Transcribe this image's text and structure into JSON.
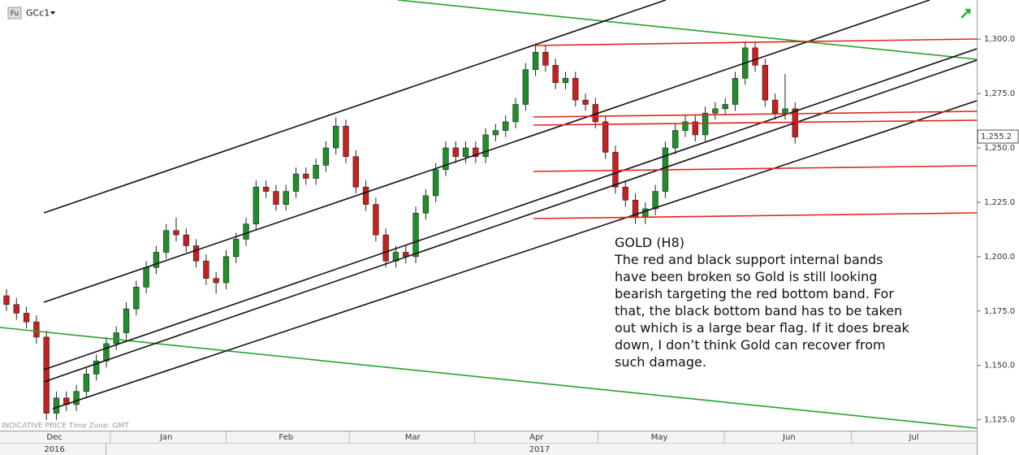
{
  "chart_data": {
    "type": "candlestick",
    "symbol_prefix": "Fu",
    "symbol": "GCc1",
    "footer": "INDICATIVE PRICE   Time Zone: GMT",
    "annotation": {
      "title": "GOLD (H8)",
      "lines": [
        "The red and black support internal bands",
        "have been broken so Gold is still looking",
        "bearish targeting the red bottom band. For",
        "that, the black bottom band has to be taken",
        "out which is a large bear flag. If it does break",
        "down, I don’t think Gold can recover from",
        "such damage."
      ]
    },
    "up_color": "#1f8f2a",
    "down_color": "#c62020",
    "xlim": [
      -0.65,
      97.2
    ],
    "ylim": [
      1120,
      1318
    ],
    "yticks": [
      {
        "value": 1125,
        "label": "1,125.0"
      },
      {
        "value": 1150,
        "label": "1,150.0"
      },
      {
        "value": 1175,
        "label": "1,175.0"
      },
      {
        "value": 1200,
        "label": "1,200.0"
      },
      {
        "value": 1225,
        "label": "1,225.0"
      },
      {
        "value": 1250,
        "label": "1,250.0"
      },
      {
        "value": 1275,
        "label": "1,275.0"
      },
      {
        "value": 1300,
        "label": "1,300.0"
      }
    ],
    "xticks": [
      {
        "value": 4.8,
        "label": "Dec"
      },
      {
        "value": 16,
        "label": "Jan"
      },
      {
        "value": 28,
        "label": "Feb"
      },
      {
        "value": 40.7,
        "label": "Mar"
      },
      {
        "value": 53.1,
        "label": "Apr"
      },
      {
        "value": 65.4,
        "label": "May"
      },
      {
        "value": 78.4,
        "label": "Jun"
      },
      {
        "value": 90.9,
        "label": "Jul"
      }
    ],
    "year_ticks": [
      {
        "value": 4.8,
        "label": "2016"
      },
      {
        "value": 53.4,
        "label": "2017"
      }
    ],
    "last_price": {
      "value": 1255.2,
      "label": "1,255.2"
    },
    "candles": [
      [
        1182,
        1185,
        1175,
        1178
      ],
      [
        1178,
        1181,
        1171,
        1174
      ],
      [
        1174,
        1177,
        1167,
        1170
      ],
      [
        1170,
        1173,
        1160,
        1163
      ],
      [
        1163,
        1166,
        1125,
        1128
      ],
      [
        1128,
        1138,
        1125,
        1135
      ],
      [
        1135,
        1138,
        1129,
        1132
      ],
      [
        1132,
        1141,
        1129,
        1138
      ],
      [
        1138,
        1149,
        1135,
        1146
      ],
      [
        1146,
        1155,
        1143,
        1152
      ],
      [
        1152,
        1163,
        1149,
        1160
      ],
      [
        1160,
        1168,
        1157,
        1165
      ],
      [
        1165,
        1179,
        1162,
        1176
      ],
      [
        1176,
        1189,
        1173,
        1186
      ],
      [
        1186,
        1198,
        1183,
        1195
      ],
      [
        1195,
        1205,
        1192,
        1202
      ],
      [
        1202,
        1215,
        1199,
        1212
      ],
      [
        1212,
        1218,
        1207,
        1210
      ],
      [
        1210,
        1213,
        1202,
        1205
      ],
      [
        1205,
        1208,
        1195,
        1198
      ],
      [
        1198,
        1201,
        1187,
        1190
      ],
      [
        1190,
        1193,
        1183,
        1188
      ],
      [
        1188,
        1203,
        1185,
        1200
      ],
      [
        1200,
        1211,
        1197,
        1208
      ],
      [
        1208,
        1218,
        1205,
        1215
      ],
      [
        1215,
        1235,
        1212,
        1232
      ],
      [
        1232,
        1235,
        1227,
        1230
      ],
      [
        1230,
        1233,
        1221,
        1224
      ],
      [
        1224,
        1233,
        1221,
        1230
      ],
      [
        1230,
        1241,
        1227,
        1238
      ],
      [
        1238,
        1241,
        1233,
        1236
      ],
      [
        1236,
        1245,
        1233,
        1242
      ],
      [
        1242,
        1253,
        1239,
        1250
      ],
      [
        1250,
        1264,
        1247,
        1260
      ],
      [
        1260,
        1263,
        1243,
        1246
      ],
      [
        1246,
        1249,
        1229,
        1232
      ],
      [
        1232,
        1235,
        1221,
        1224
      ],
      [
        1224,
        1227,
        1207,
        1210
      ],
      [
        1210,
        1213,
        1195,
        1198
      ],
      [
        1198,
        1205,
        1195,
        1202
      ],
      [
        1202,
        1205,
        1197,
        1200
      ],
      [
        1200,
        1223,
        1197,
        1220
      ],
      [
        1220,
        1231,
        1217,
        1228
      ],
      [
        1228,
        1243,
        1225,
        1240
      ],
      [
        1240,
        1253,
        1237,
        1250
      ],
      [
        1250,
        1253,
        1243,
        1246
      ],
      [
        1246,
        1253,
        1243,
        1250
      ],
      [
        1250,
        1253,
        1243,
        1246
      ],
      [
        1246,
        1259,
        1243,
        1256
      ],
      [
        1256,
        1261,
        1253,
        1258
      ],
      [
        1258,
        1265,
        1255,
        1262
      ],
      [
        1262,
        1273,
        1259,
        1270
      ],
      [
        1270,
        1289,
        1267,
        1286
      ],
      [
        1286,
        1298,
        1283,
        1294
      ],
      [
        1294,
        1297,
        1285,
        1288
      ],
      [
        1288,
        1291,
        1277,
        1280
      ],
      [
        1280,
        1285,
        1277,
        1282
      ],
      [
        1282,
        1285,
        1269,
        1272
      ],
      [
        1272,
        1275,
        1267,
        1270
      ],
      [
        1270,
        1273,
        1259,
        1262
      ],
      [
        1262,
        1265,
        1245,
        1248
      ],
      [
        1248,
        1251,
        1229,
        1232
      ],
      [
        1232,
        1235,
        1223,
        1226
      ],
      [
        1226,
        1229,
        1215,
        1218
      ],
      [
        1218,
        1225,
        1215,
        1222
      ],
      [
        1222,
        1233,
        1219,
        1230
      ],
      [
        1230,
        1253,
        1227,
        1250
      ],
      [
        1250,
        1261,
        1247,
        1258
      ],
      [
        1258,
        1265,
        1255,
        1262
      ],
      [
        1262,
        1265,
        1253,
        1256
      ],
      [
        1256,
        1269,
        1253,
        1266
      ],
      [
        1266,
        1271,
        1263,
        1268
      ],
      [
        1268,
        1273,
        1265,
        1270
      ],
      [
        1270,
        1285,
        1267,
        1282
      ],
      [
        1282,
        1299,
        1279,
        1296
      ],
      [
        1296,
        1299,
        1285,
        1288
      ],
      [
        1288,
        1291,
        1269,
        1272
      ],
      [
        1272,
        1275,
        1263,
        1266
      ],
      [
        1266,
        1284,
        1263,
        1268
      ],
      [
        1268,
        1271,
        1252,
        1255
      ]
    ]
  }
}
